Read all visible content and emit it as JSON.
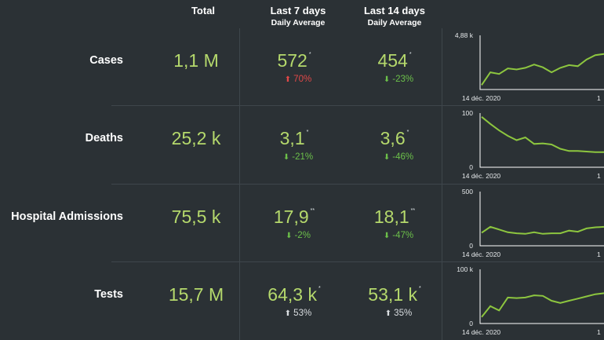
{
  "header": {
    "total": "Total",
    "last7": "Last 7 days",
    "last7_sub": "Daily Average",
    "last14": "Last 14 days",
    "last14_sub": "Daily Average"
  },
  "colors": {
    "value": "#b5d96c",
    "line": "#8dc63f",
    "down": "#6cc04a",
    "up_bad": "#e04848",
    "up_neutral": "#d9dde0"
  },
  "rows": [
    {
      "label": "Cases",
      "total": "1,1 M",
      "last7": "572",
      "last7_mark": "*",
      "last7_change": "70%",
      "last7_dir": "up",
      "last7_tone": "red",
      "last14": "454",
      "last14_mark": "*",
      "last14_change": "-23%",
      "last14_dir": "down",
      "last14_tone": "green",
      "chart_ymax": "4,88 k",
      "chart_ymin": "",
      "chart_x_start": "14 déc. 2020",
      "chart_x_end": "1"
    },
    {
      "label": "Deaths",
      "total": "25,2 k",
      "last7": "3,1",
      "last7_mark": "*",
      "last7_change": "-21%",
      "last7_dir": "down",
      "last7_tone": "green",
      "last14": "3,6",
      "last14_mark": "*",
      "last14_change": "-46%",
      "last14_dir": "down",
      "last14_tone": "green",
      "chart_ymax": "100",
      "chart_ymin": "0",
      "chart_x_start": "14 déc. 2020",
      "chart_x_end": "1"
    },
    {
      "label": "Hospital Admissions",
      "total": "75,5 k",
      "last7": "17,9",
      "last7_mark": "**",
      "last7_change": "-2%",
      "last7_dir": "down",
      "last7_tone": "green",
      "last14": "18,1",
      "last14_mark": "**",
      "last14_change": "-47%",
      "last14_dir": "down",
      "last14_tone": "green",
      "chart_ymax": "500",
      "chart_ymin": "0",
      "chart_x_start": "14 déc. 2020",
      "chart_x_end": "1"
    },
    {
      "label": "Tests",
      "total": "15,7 M",
      "last7": "64,3 k",
      "last7_mark": "*",
      "last7_change": "53%",
      "last7_dir": "up",
      "last7_tone": "grey",
      "last14": "53,1 k",
      "last14_mark": "*",
      "last14_change": "35%",
      "last14_dir": "up",
      "last14_tone": "grey",
      "chart_ymax": "100 k",
      "chart_ymin": "0",
      "chart_x_start": "14 déc. 2020",
      "chart_x_end": "1"
    }
  ],
  "chart_data": [
    {
      "type": "line",
      "series_name": "Cases",
      "ylim": [
        0,
        4880
      ],
      "values": [
        400,
        1550,
        1400,
        1900,
        1800,
        1950,
        2250,
        2000,
        1550,
        1950,
        2200,
        2100,
        2700,
        3100,
        3200
      ]
    },
    {
      "type": "line",
      "series_name": "Deaths",
      "ylim": [
        0,
        100
      ],
      "values": [
        93,
        80,
        68,
        58,
        50,
        55,
        43,
        44,
        42,
        34,
        30,
        30,
        29,
        28,
        28
      ]
    },
    {
      "type": "line",
      "series_name": "Hospital Admissions",
      "ylim": [
        0,
        500
      ],
      "values": [
        120,
        175,
        150,
        125,
        115,
        110,
        125,
        110,
        115,
        115,
        140,
        130,
        160,
        170,
        175
      ]
    },
    {
      "type": "line",
      "series_name": "Tests",
      "ylim": [
        0,
        100000
      ],
      "values": [
        12000,
        32000,
        24000,
        48000,
        47000,
        48000,
        52000,
        51000,
        42000,
        38000,
        42000,
        46000,
        50000,
        54000,
        56000
      ]
    }
  ]
}
